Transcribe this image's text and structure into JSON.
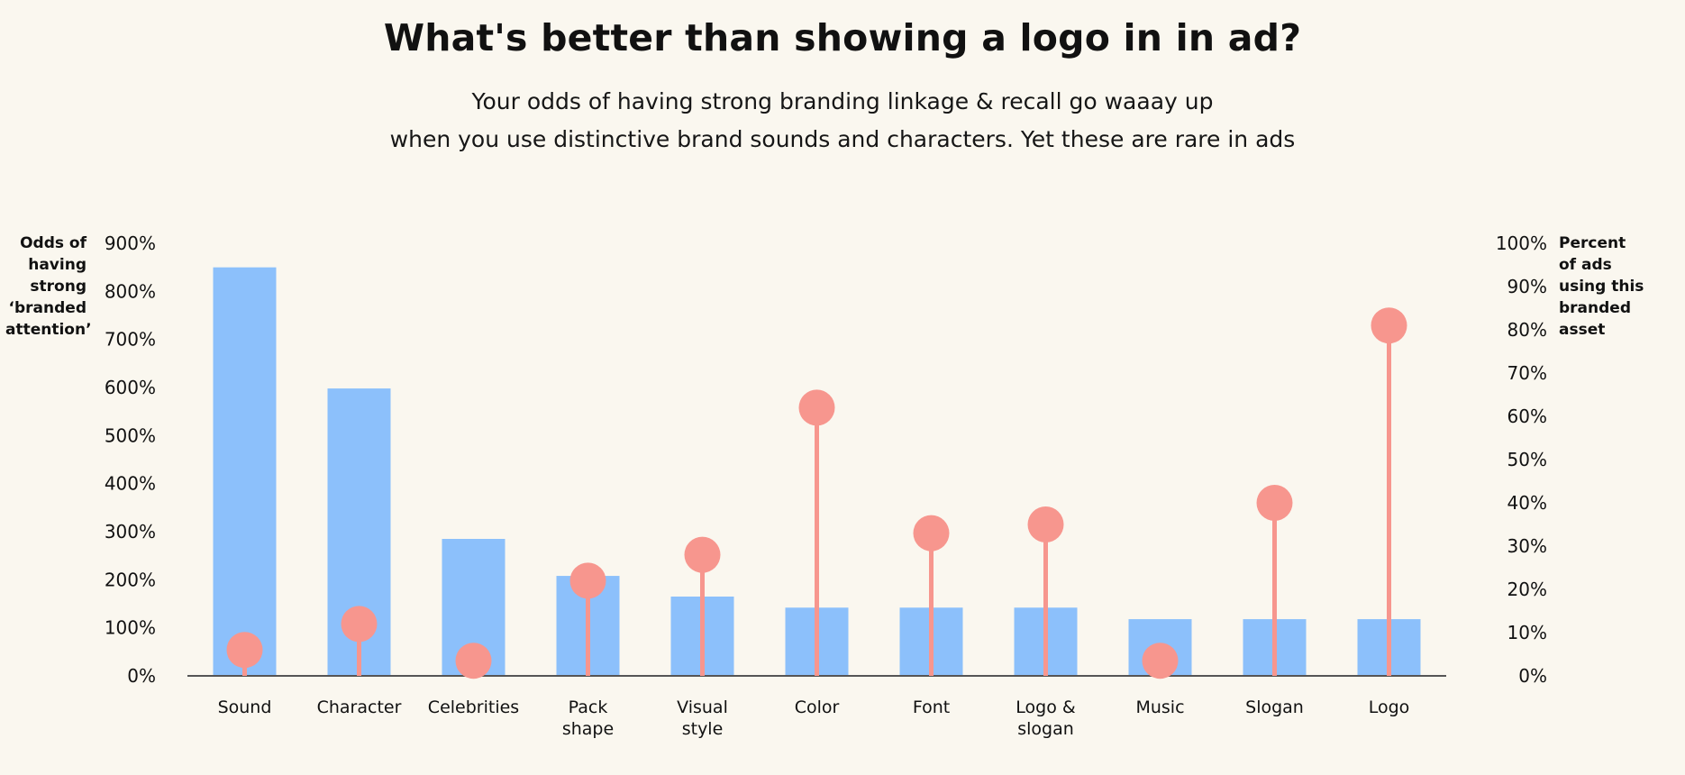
{
  "title": "What's better than showing a logo in in ad?",
  "subtitle_lines": [
    "Your odds of having strong branding linkage & recall go waaay up",
    "when you use distinctive brand sounds and characters. Yet these are rare in ads"
  ],
  "colors": {
    "bar": "#8cc0fb",
    "lollipop": "#f7968e",
    "background": "#faf7ef",
    "baseline": "#555555"
  },
  "chart_data": {
    "type": "bar",
    "categories": [
      [
        "Sound"
      ],
      [
        "Character"
      ],
      [
        "Celebrities"
      ],
      [
        "Pack",
        "shape"
      ],
      [
        "Visual",
        "style"
      ],
      [
        "Color"
      ],
      [
        "Font"
      ],
      [
        "Logo &",
        "slogan"
      ],
      [
        "Music"
      ],
      [
        "Slogan"
      ],
      [
        "Logo"
      ]
    ],
    "series": [
      {
        "axis": "left",
        "mark": "bar",
        "values": [
          850,
          598,
          285,
          208,
          165,
          142,
          142,
          142,
          118,
          118,
          118
        ]
      },
      {
        "axis": "right",
        "mark": "lollipop",
        "values": [
          6,
          12,
          3.5,
          22,
          28,
          62,
          33,
          35,
          3.5,
          40,
          81
        ]
      }
    ],
    "y_left": {
      "label_lines": [
        "Odds of",
        "having",
        "strong",
        "‘branded",
        "attention’"
      ],
      "range": [
        0,
        900
      ],
      "ticks": [
        "0%",
        "100%",
        "200%",
        "300%",
        "400%",
        "500%",
        "600%",
        "700%",
        "800%",
        "900%"
      ]
    },
    "y_right": {
      "label_lines": [
        "Percent",
        "of ads",
        " using this",
        "branded",
        "asset"
      ],
      "range": [
        0,
        100
      ],
      "ticks": [
        "0%",
        "10%",
        "20%",
        "30%",
        "40%",
        "50%",
        "60%",
        "70%",
        "80%",
        "90%",
        "100%"
      ]
    },
    "grid": false
  }
}
